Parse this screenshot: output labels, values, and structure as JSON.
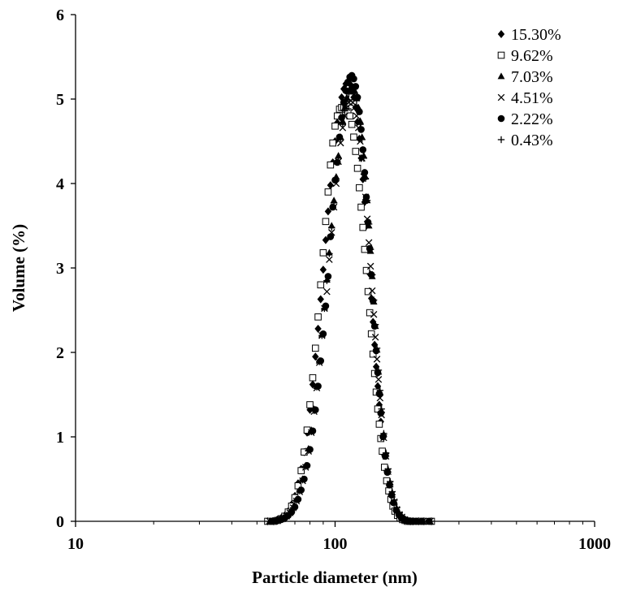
{
  "chart_data": {
    "type": "scatter",
    "xlabel": "Particle diameter (nm)",
    "ylabel": "Volume (%)",
    "x_scale": "log",
    "xlim": [
      10,
      1000
    ],
    "ylim": [
      0,
      6
    ],
    "x_ticks": [
      10,
      100,
      1000
    ],
    "x_tick_labels": [
      "10",
      "100",
      "1000"
    ],
    "y_ticks": [
      0,
      1,
      2,
      3,
      4,
      5,
      6
    ],
    "y_tick_labels": [
      "0",
      "1",
      "2",
      "3",
      "4",
      "5",
      "6"
    ],
    "grid": false,
    "legend_position": "top-right",
    "series": [
      {
        "name": "15.30%",
        "marker": "diamond",
        "color": "#000000",
        "x": [
          55,
          58,
          60,
          62,
          64,
          66,
          68,
          70,
          72,
          74,
          76,
          78,
          80,
          82,
          84,
          86,
          88,
          90,
          92,
          94,
          96,
          98,
          100,
          102,
          104,
          106,
          108,
          110,
          112,
          114,
          116,
          118,
          120,
          122,
          124,
          126,
          128,
          130,
          132,
          134,
          136,
          138,
          140,
          142,
          144,
          146,
          148,
          150,
          152,
          155,
          158,
          161,
          164,
          167,
          170,
          174,
          178,
          182,
          186,
          190,
          195,
          200,
          210,
          220,
          235
        ],
        "y": [
          0.0,
          0.0,
          0.02,
          0.04,
          0.07,
          0.12,
          0.2,
          0.3,
          0.45,
          0.62,
          0.82,
          1.05,
          1.32,
          1.62,
          1.95,
          2.28,
          2.63,
          2.98,
          3.33,
          3.67,
          3.98,
          4.25,
          4.5,
          4.72,
          4.88,
          5.02,
          5.12,
          5.18,
          5.2,
          5.18,
          5.12,
          5.02,
          4.9,
          4.73,
          4.53,
          4.3,
          4.05,
          3.78,
          3.5,
          3.22,
          2.93,
          2.64,
          2.36,
          2.09,
          1.83,
          1.6,
          1.38,
          1.18,
          1.0,
          0.78,
          0.6,
          0.45,
          0.33,
          0.23,
          0.16,
          0.1,
          0.06,
          0.04,
          0.02,
          0.01,
          0.0,
          0.0,
          0.0,
          0.0,
          0.0
        ]
      },
      {
        "name": "9.62%",
        "marker": "open-square",
        "color": "#000000",
        "x": [
          55,
          58,
          60,
          62,
          64,
          66,
          68,
          70,
          72,
          74,
          76,
          78,
          80,
          82,
          84,
          86,
          88,
          90,
          92,
          94,
          96,
          98,
          100,
          102,
          104,
          106,
          108,
          110,
          112,
          114,
          116,
          118,
          120,
          122,
          124,
          126,
          128,
          130,
          132,
          134,
          136,
          138,
          140,
          142,
          144,
          146,
          148,
          150,
          152,
          155,
          158,
          161,
          164,
          167,
          170,
          174,
          178,
          182,
          186,
          190,
          195,
          200,
          210,
          220,
          235
        ],
        "y": [
          0.0,
          0.0,
          0.01,
          0.03,
          0.06,
          0.11,
          0.18,
          0.28,
          0.42,
          0.6,
          0.82,
          1.08,
          1.38,
          1.7,
          2.05,
          2.42,
          2.8,
          3.18,
          3.55,
          3.9,
          4.22,
          4.48,
          4.68,
          4.8,
          4.88,
          4.9,
          4.9,
          4.88,
          4.85,
          4.8,
          4.7,
          4.55,
          4.38,
          4.18,
          3.95,
          3.72,
          3.48,
          3.22,
          2.97,
          2.72,
          2.47,
          2.22,
          1.98,
          1.75,
          1.53,
          1.33,
          1.15,
          0.98,
          0.83,
          0.64,
          0.48,
          0.36,
          0.26,
          0.18,
          0.12,
          0.07,
          0.04,
          0.02,
          0.01,
          0.0,
          0.0,
          0.0,
          0.0,
          0.0,
          0.0
        ]
      },
      {
        "name": "7.03%",
        "marker": "triangle",
        "color": "#000000",
        "x": [
          56,
          59,
          61,
          63,
          65,
          67,
          69,
          71,
          73,
          75,
          77,
          79,
          81,
          83,
          85,
          87,
          89,
          91,
          93,
          95,
          97,
          99,
          101,
          103,
          105,
          107,
          109,
          111,
          113,
          115,
          117,
          119,
          121,
          123,
          125,
          127,
          129,
          131,
          133,
          135,
          137,
          139,
          141,
          143,
          145,
          147,
          149,
          151,
          154,
          157,
          160,
          163,
          166,
          169,
          173,
          177,
          181,
          185,
          189,
          194,
          199,
          208,
          218,
          232
        ],
        "y": [
          0.0,
          0.01,
          0.02,
          0.04,
          0.07,
          0.11,
          0.17,
          0.26,
          0.37,
          0.5,
          0.66,
          0.86,
          1.08,
          1.33,
          1.6,
          1.9,
          2.21,
          2.53,
          2.86,
          3.18,
          3.5,
          3.8,
          4.08,
          4.33,
          4.55,
          4.74,
          4.9,
          5.02,
          5.1,
          5.14,
          5.14,
          5.1,
          5.02,
          4.9,
          4.74,
          4.55,
          4.33,
          4.08,
          3.8,
          3.5,
          3.2,
          2.9,
          2.6,
          2.31,
          2.03,
          1.77,
          1.53,
          1.31,
          1.03,
          0.8,
          0.61,
          0.46,
          0.34,
          0.24,
          0.15,
          0.09,
          0.05,
          0.03,
          0.01,
          0.0,
          0.0,
          0.0,
          0.0,
          0.0
        ]
      },
      {
        "name": "4.51%",
        "marker": "x",
        "color": "#000000",
        "x": [
          56,
          59,
          61,
          63,
          65,
          67,
          69,
          71,
          73,
          75,
          77,
          79,
          81,
          83,
          85,
          87,
          89,
          91,
          93,
          95,
          97,
          99,
          101,
          103,
          105,
          107,
          109,
          111,
          113,
          115,
          117,
          119,
          121,
          123,
          125,
          127,
          129,
          131,
          133,
          135,
          137,
          139,
          141,
          143,
          145,
          147,
          149,
          151,
          154,
          157,
          160,
          163,
          166,
          169,
          173,
          177,
          181,
          185,
          189,
          194,
          199,
          208,
          218,
          232
        ],
        "y": [
          0.0,
          0.01,
          0.02,
          0.03,
          0.06,
          0.1,
          0.16,
          0.24,
          0.35,
          0.48,
          0.64,
          0.83,
          1.05,
          1.3,
          1.58,
          1.88,
          2.2,
          2.52,
          2.72,
          3.1,
          3.42,
          3.72,
          4.0,
          4.26,
          4.48,
          4.66,
          4.8,
          4.9,
          4.96,
          4.98,
          4.96,
          4.9,
          4.8,
          4.66,
          4.5,
          4.3,
          4.08,
          3.84,
          3.58,
          3.3,
          3.02,
          2.73,
          2.45,
          2.18,
          1.92,
          1.68,
          1.46,
          1.26,
          0.99,
          0.77,
          0.59,
          0.44,
          0.32,
          0.23,
          0.14,
          0.08,
          0.05,
          0.02,
          0.01,
          0.0,
          0.0,
          0.0,
          0.0,
          0.0
        ]
      },
      {
        "name": "2.22%",
        "marker": "circle",
        "color": "#000000",
        "x": [
          57,
          60,
          62,
          64,
          66,
          68,
          70,
          72,
          74,
          76,
          78,
          80,
          82,
          84,
          86,
          88,
          90,
          92,
          94,
          96,
          98,
          100,
          102,
          104,
          106,
          108,
          110,
          112,
          114,
          116,
          118,
          120,
          122,
          124,
          126,
          128,
          130,
          132,
          134,
          136,
          138,
          140,
          142,
          144,
          146,
          148,
          150,
          153,
          156,
          159,
          162,
          165,
          168,
          172,
          176,
          180,
          184,
          188,
          193,
          198,
          206,
          216,
          230
        ],
        "y": [
          0.0,
          0.01,
          0.02,
          0.04,
          0.07,
          0.11,
          0.17,
          0.26,
          0.37,
          0.5,
          0.66,
          0.85,
          1.07,
          1.32,
          1.6,
          1.9,
          2.22,
          2.55,
          2.9,
          3.37,
          3.72,
          4.04,
          4.25,
          4.55,
          4.78,
          4.96,
          5.1,
          5.2,
          5.26,
          5.28,
          5.24,
          5.15,
          5.02,
          4.85,
          4.64,
          4.4,
          4.13,
          3.84,
          3.54,
          3.23,
          2.92,
          2.61,
          2.31,
          2.02,
          1.76,
          1.51,
          1.28,
          1.0,
          0.77,
          0.58,
          0.43,
          0.31,
          0.22,
          0.13,
          0.08,
          0.04,
          0.02,
          0.01,
          0.0,
          0.0,
          0.0,
          0.0,
          0.0
        ]
      },
      {
        "name": "0.43%",
        "marker": "plus",
        "color": "#000000",
        "x": [
          56,
          59,
          61,
          63,
          65,
          67,
          69,
          71,
          73,
          75,
          77,
          79,
          81,
          83,
          85,
          87,
          89,
          91,
          93,
          95,
          97,
          99,
          101,
          103,
          105,
          107,
          109,
          111,
          113,
          115,
          117,
          119,
          121,
          123,
          125,
          127,
          129,
          131,
          133,
          135,
          137,
          139,
          141,
          143,
          145,
          147,
          149,
          151,
          154,
          157,
          160,
          163,
          166,
          169,
          173,
          177,
          181,
          185,
          189,
          194,
          199,
          208,
          218,
          232
        ],
        "y": [
          0.0,
          0.01,
          0.02,
          0.03,
          0.06,
          0.1,
          0.16,
          0.25,
          0.36,
          0.49,
          0.65,
          0.84,
          1.06,
          1.31,
          1.59,
          1.89,
          2.2,
          2.52,
          2.85,
          3.17,
          3.48,
          3.77,
          4.05,
          4.3,
          4.52,
          4.7,
          4.86,
          4.98,
          5.06,
          5.1,
          5.1,
          5.06,
          4.98,
          4.86,
          4.7,
          4.52,
          4.3,
          4.06,
          3.8,
          3.52,
          3.22,
          2.92,
          2.62,
          2.33,
          2.05,
          1.79,
          1.55,
          1.33,
          1.04,
          0.81,
          0.62,
          0.47,
          0.35,
          0.25,
          0.16,
          0.1,
          0.06,
          0.03,
          0.01,
          0.0,
          0.0,
          0.0,
          0.0,
          0.0
        ]
      }
    ]
  }
}
